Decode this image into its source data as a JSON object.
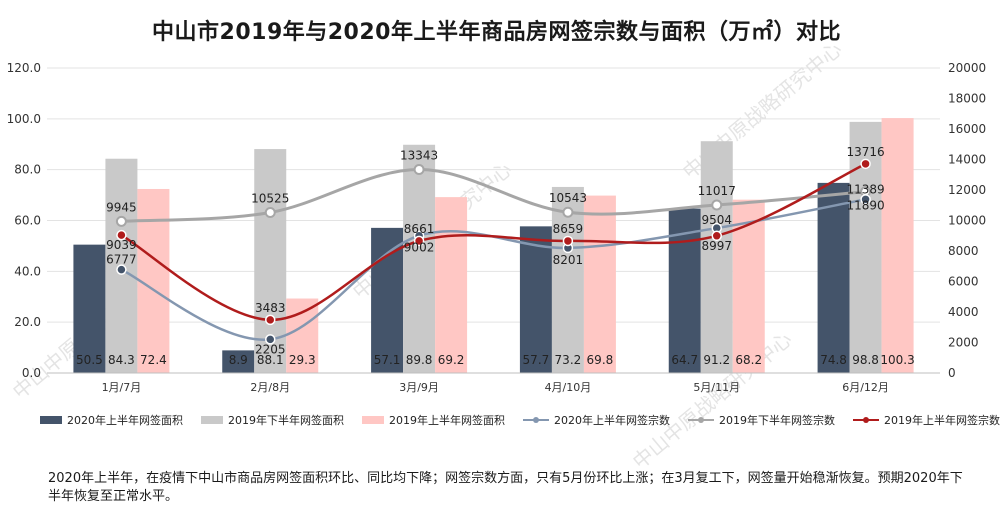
{
  "title": "中山市2019年与2020年上半年商品房网签宗数与面积（万㎡）对比",
  "watermark": "中山中原战略研究中心",
  "chart_data": {
    "type": "bar+line",
    "categories": [
      "1月/7月",
      "2月/8月",
      "3月/9月",
      "4月/10月",
      "5月/11月",
      "6月/12月"
    ],
    "y_left": {
      "ticks": [
        "0.0",
        "20.0",
        "40.0",
        "60.0",
        "80.0",
        "100.0",
        "120.0"
      ],
      "range": [
        0,
        120
      ]
    },
    "y_right": {
      "ticks": [
        "0",
        "2000",
        "4000",
        "6000",
        "8000",
        "10000",
        "12000",
        "14000",
        "16000",
        "18000",
        "20000"
      ],
      "range": [
        0,
        20000
      ]
    },
    "bar_series": [
      {
        "name": "2020年上半年网签面积",
        "color": "#44546a",
        "values": [
          50.5,
          8.9,
          57.1,
          57.7,
          64.7,
          74.8
        ],
        "labels": [
          "50.5",
          "8.9",
          "57.1",
          "57.7",
          "64.7",
          "74.8"
        ]
      },
      {
        "name": "2019年下半年网签面积",
        "color": "#c9c9c9",
        "values": [
          84.3,
          88.1,
          89.8,
          73.2,
          91.2,
          98.8
        ],
        "labels": [
          "84.3",
          "88.1",
          "89.8",
          "73.2",
          "91.2",
          "98.8"
        ]
      },
      {
        "name": "2019年上半年网签面积",
        "color": "#ffc7c4",
        "values": [
          72.4,
          29.3,
          69.2,
          69.8,
          68.2,
          100.3
        ],
        "labels": [
          "72.4",
          "29.3",
          "69.2",
          "69.8",
          "68.2",
          "100.3"
        ]
      }
    ],
    "line_series": [
      {
        "name": "2020年上半年网签宗数",
        "color": "#8497b0",
        "marker": "#44546a",
        "values": [
          6777,
          2205,
          9002,
          8201,
          9504,
          11389
        ],
        "labels": [
          "6777",
          "2205",
          "9002",
          "8201",
          "9504",
          "11389"
        ]
      },
      {
        "name": "2019年下半年网签宗数",
        "color": "#a6a6a6",
        "marker": "#a6a6a6",
        "values": [
          9945,
          10525,
          13343,
          10543,
          11017,
          11890
        ],
        "labels": [
          "9945",
          "10525",
          "13343",
          "10543",
          "11017",
          "11890"
        ]
      },
      {
        "name": "2019年上半年网签宗数",
        "color": "#b01c1c",
        "marker": "#b01c1c",
        "values": [
          9039,
          3483,
          8661,
          8659,
          8997,
          13716
        ],
        "labels": [
          "9039",
          "3483",
          "8661",
          "8659",
          "8997",
          "13716"
        ]
      }
    ]
  },
  "footnote": "2020年上半年，在疫情下中山市商品房网签面积环比、同比均下降；网签宗数方面，只有5月份环比上涨；在3月复工下，网签量开始稳渐恢复。预期2020年下半年恢复至正常水平。"
}
